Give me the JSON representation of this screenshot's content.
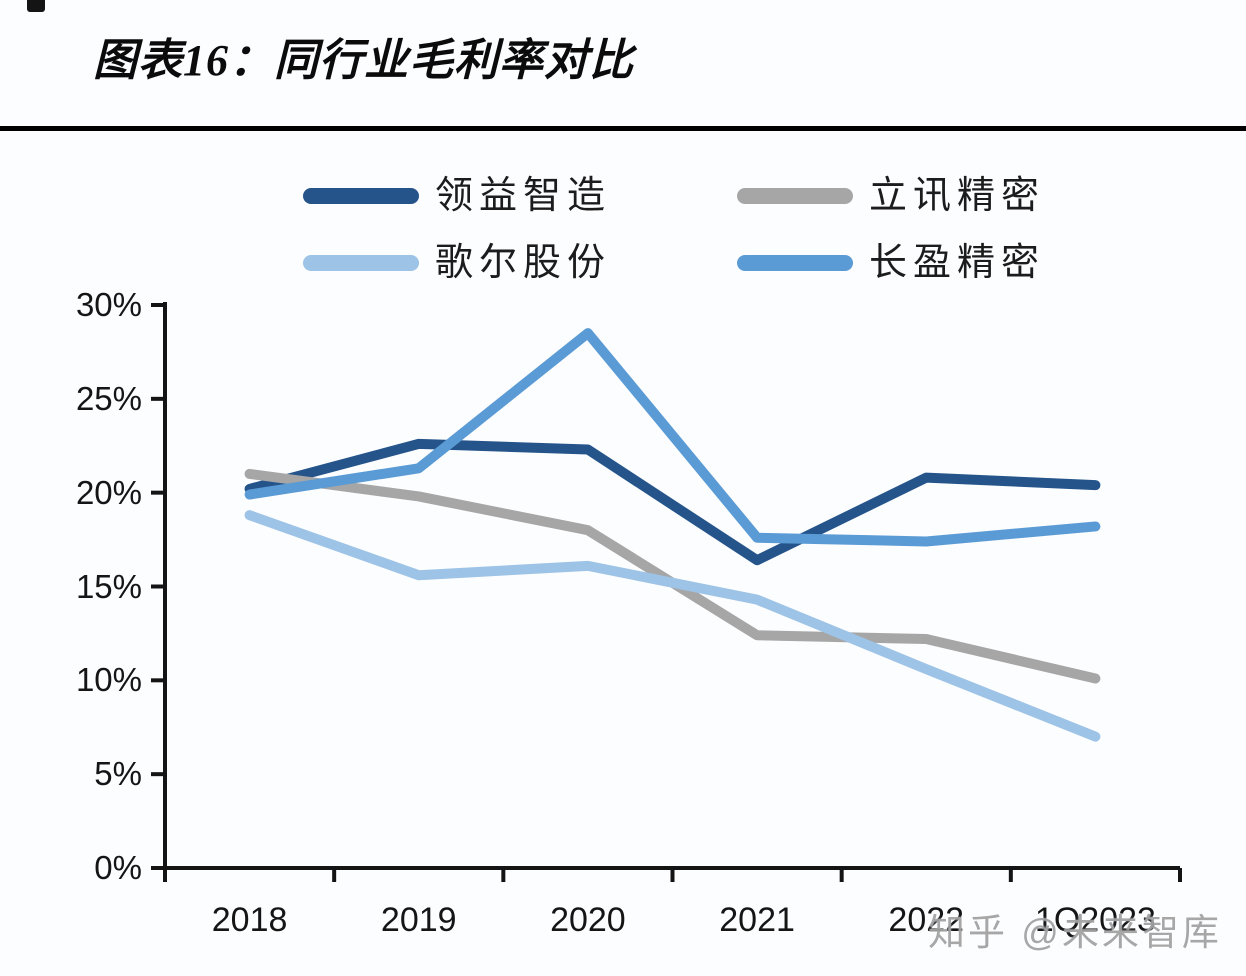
{
  "page": {
    "title": "图表16：同行业毛利率对比",
    "watermark": "知乎 @未来智库",
    "title_color": "#0b0b0b",
    "divider_color": "#000000",
    "axis_color": "#141414",
    "background_color": "#fcfdff",
    "watermark_color": "#a3a3a3"
  },
  "legend": {
    "items": [
      {
        "id": "lingyi-zhizao",
        "label": "领益智造",
        "color": "#24548A"
      },
      {
        "id": "lixun-jingmi",
        "label": "立讯精密",
        "color": "#A6A6A6"
      },
      {
        "id": "goer-gufen",
        "label": "歌尔股份",
        "color": "#9DC3E6"
      },
      {
        "id": "changying-jingmi",
        "label": "长盈精密",
        "color": "#5B9BD5"
      }
    ]
  },
  "chart_data": {
    "type": "line",
    "title": "图表16：同行业毛利率对比",
    "categories": [
      "2018",
      "2019",
      "2020",
      "2021",
      "2022",
      "1Q2023"
    ],
    "series": [
      {
        "id": "lingyi-zhizao",
        "name": "领益智造",
        "color": "#24548A",
        "values": [
          20.2,
          22.6,
          22.3,
          16.4,
          20.8,
          20.4
        ]
      },
      {
        "id": "lixun-jingmi",
        "name": "立讯精密",
        "color": "#A6A6A6",
        "values": [
          21.0,
          19.8,
          18.0,
          12.4,
          12.2,
          10.1
        ]
      },
      {
        "id": "goer-gufen",
        "name": "歌尔股份",
        "color": "#9DC3E6",
        "values": [
          18.8,
          15.6,
          16.1,
          14.3,
          10.6,
          7.0
        ]
      },
      {
        "id": "changying-jingmi",
        "name": "长盈精密",
        "color": "#5B9BD5",
        "values": [
          19.9,
          21.3,
          28.5,
          17.6,
          17.4,
          18.2
        ]
      }
    ],
    "xlabel": "",
    "ylabel": "",
    "ylim": [
      0,
      30
    ],
    "yticks": [
      "0%",
      "5%",
      "10%",
      "15%",
      "20%",
      "25%",
      "30%"
    ],
    "grid": false,
    "legend_position": "top"
  }
}
